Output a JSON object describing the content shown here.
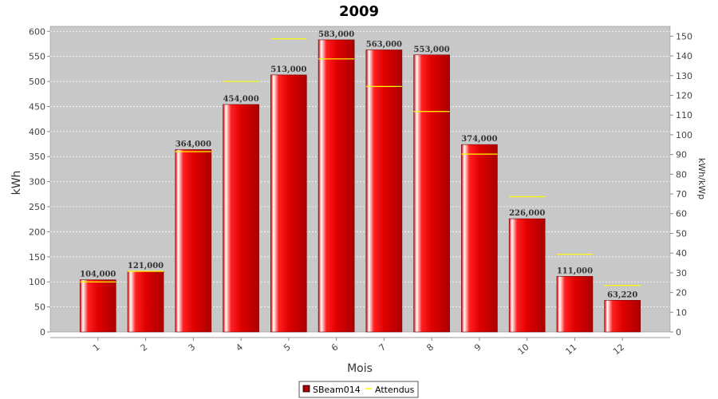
{
  "chart_data": {
    "type": "bar",
    "title": "2009",
    "xlabel": "Mois",
    "ylabel": "kWh",
    "y2label": "kWh/kWp",
    "categories": [
      "1",
      "2",
      "3",
      "4",
      "5",
      "6",
      "7",
      "8",
      "9",
      "10",
      "11",
      "12"
    ],
    "ylim": [
      0,
      610
    ],
    "y2lim": [
      0,
      155
    ],
    "yticks": [
      0,
      50,
      100,
      150,
      200,
      250,
      300,
      350,
      400,
      450,
      500,
      550,
      600
    ],
    "y2ticks": [
      0,
      10,
      20,
      30,
      40,
      50,
      60,
      70,
      80,
      90,
      100,
      110,
      120,
      130,
      140,
      150
    ],
    "grid": true,
    "legend_position": "bottom-center",
    "series": [
      {
        "name": "SBeam014",
        "kind": "bar",
        "color": "#e00000",
        "values": [
          104,
          121,
          364,
          454,
          513,
          583,
          563,
          553,
          374,
          226,
          111,
          63.22
        ],
        "labels": [
          "104,000",
          "121,000",
          "364,000",
          "454,000",
          "513,000",
          "583,000",
          "563,000",
          "553,000",
          "374,000",
          "226,000",
          "111,000",
          "63,220"
        ]
      },
      {
        "name": "Attendus",
        "kind": "target-line",
        "color": "#ffff00",
        "values": [
          100,
          121,
          360,
          500,
          585,
          545,
          490,
          440,
          355,
          270,
          155,
          93
        ]
      }
    ]
  }
}
